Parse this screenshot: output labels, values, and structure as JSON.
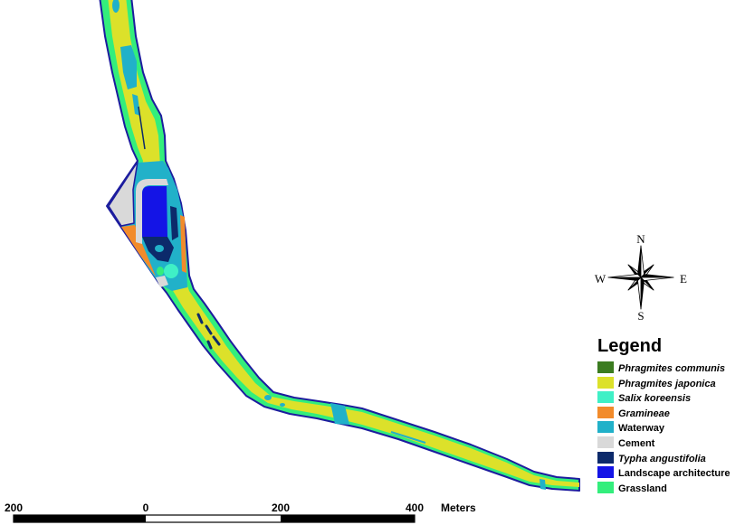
{
  "map": {
    "outline_color": "#1c1c9e"
  },
  "compass": {
    "north": "N",
    "south": "S",
    "west": "W",
    "east": "E"
  },
  "legend": {
    "title": "Legend",
    "items": [
      {
        "label": "Phragmites communis",
        "color": "#3b7c20"
      },
      {
        "label": "Phragmites japonica",
        "color": "#dce12a"
      },
      {
        "label": "Salix koreensis",
        "color": "#3ff0c6"
      },
      {
        "label": "Gramineae",
        "color": "#f28b2b"
      },
      {
        "label": "Waterway",
        "color": "#21b1c9"
      },
      {
        "label": "Cement",
        "color": "#d9d9d9"
      },
      {
        "label": "Typha angustifolia",
        "color": "#0c2a6b"
      },
      {
        "label": "Landscape architecture",
        "color": "#1414e6"
      },
      {
        "label": "Grassland",
        "color": "#33ee7c"
      }
    ]
  },
  "scale_bar": {
    "labels": [
      "200",
      "0",
      "200",
      "400"
    ],
    "unit": "Meters"
  }
}
